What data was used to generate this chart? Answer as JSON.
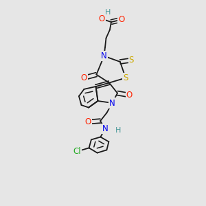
{
  "background_color": "#e6e6e6",
  "bond_color": "#1a1a1a",
  "atoms": {
    "H": {
      "color": "#4a9999"
    },
    "O": {
      "color": "#ff2200"
    },
    "N": {
      "color": "#0000ee"
    },
    "S": {
      "color": "#ccaa00"
    },
    "Cl": {
      "color": "#22aa22"
    }
  }
}
